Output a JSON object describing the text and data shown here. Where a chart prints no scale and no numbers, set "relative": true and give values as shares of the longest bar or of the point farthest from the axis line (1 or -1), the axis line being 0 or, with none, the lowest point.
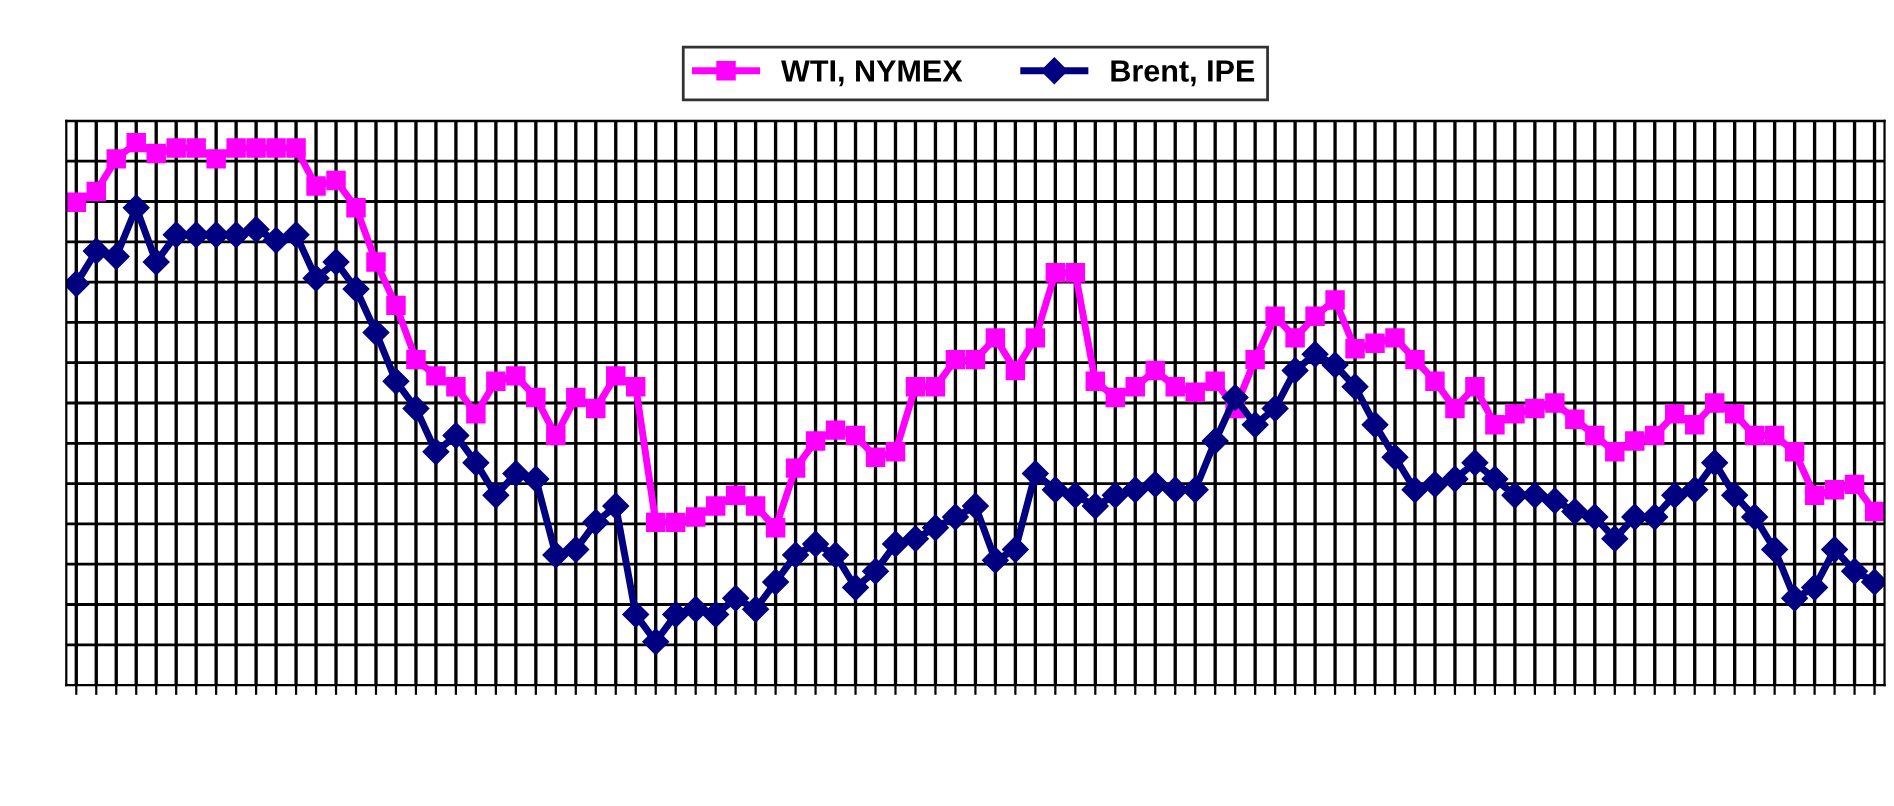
{
  "chart_data": {
    "type": "line",
    "relative": true,
    "grid": true,
    "legend": "top",
    "categories": [
      null,
      null,
      null,
      null,
      null,
      null,
      null,
      null,
      null,
      null,
      null,
      null,
      null,
      null,
      null,
      null,
      null,
      null,
      null,
      null,
      null,
      null,
      null,
      null,
      null,
      null,
      null,
      null,
      null,
      null,
      null,
      null,
      null,
      null,
      null,
      null,
      null,
      null,
      null,
      null,
      null,
      null,
      null,
      null,
      null,
      null,
      null,
      null,
      null,
      null,
      null,
      null,
      null,
      null,
      null,
      null,
      null,
      null,
      null,
      null,
      null,
      null,
      null,
      null,
      null,
      null,
      null,
      null,
      null,
      null,
      null,
      null,
      null,
      null,
      null,
      null,
      null,
      null,
      null,
      null,
      null,
      null,
      null,
      null,
      null,
      null,
      null,
      null,
      null,
      null,
      null
    ],
    "series": [
      {
        "name": "WTI, NYMEX",
        "color": "#ff00ff",
        "marker": "square",
        "values": [
          0.89,
          0.91,
          0.97,
          1.0,
          0.98,
          0.99,
          0.99,
          0.97,
          0.99,
          0.99,
          0.99,
          0.99,
          0.92,
          0.93,
          0.88,
          0.78,
          0.7,
          0.6,
          0.57,
          0.55,
          0.5,
          0.56,
          0.57,
          0.53,
          0.46,
          0.53,
          0.51,
          0.57,
          0.55,
          0.3,
          0.3,
          0.31,
          0.33,
          0.35,
          0.33,
          0.29,
          0.4,
          0.45,
          0.47,
          0.46,
          0.42,
          0.43,
          0.55,
          0.55,
          0.6,
          0.6,
          0.64,
          0.58,
          0.64,
          0.76,
          0.76,
          0.56,
          0.53,
          0.55,
          0.58,
          0.55,
          0.54,
          0.56,
          0.51,
          0.6,
          0.68,
          0.64,
          0.68,
          0.71,
          0.62,
          0.63,
          0.64,
          0.6,
          0.56,
          0.51,
          0.55,
          0.48,
          0.5,
          0.51,
          0.52,
          0.49,
          0.46,
          0.43,
          0.45,
          0.46,
          0.5,
          0.48,
          0.52,
          0.5,
          0.46,
          0.46,
          0.43,
          0.35,
          0.36,
          0.37,
          0.32
        ]
      },
      {
        "name": "Brent, IPE",
        "color": "#000080",
        "marker": "diamond",
        "values": [
          0.74,
          0.8,
          0.79,
          0.88,
          0.78,
          0.83,
          0.83,
          0.83,
          0.83,
          0.84,
          0.82,
          0.83,
          0.75,
          0.78,
          0.73,
          0.65,
          0.56,
          0.51,
          0.43,
          0.46,
          0.41,
          0.35,
          0.39,
          0.38,
          0.24,
          0.25,
          0.3,
          0.33,
          0.13,
          0.08,
          0.13,
          0.14,
          0.13,
          0.16,
          0.14,
          0.19,
          0.24,
          0.26,
          0.24,
          0.18,
          0.21,
          0.26,
          0.27,
          0.29,
          0.31,
          0.33,
          0.23,
          0.25,
          0.39,
          0.36,
          0.35,
          0.33,
          0.35,
          0.36,
          0.37,
          0.36,
          0.36,
          0.45,
          0.53,
          0.48,
          0.51,
          0.58,
          0.61,
          0.59,
          0.55,
          0.48,
          0.42,
          0.36,
          0.37,
          0.38,
          0.41,
          0.38,
          0.35,
          0.35,
          0.34,
          0.32,
          0.31,
          0.27,
          0.31,
          0.31,
          0.35,
          0.36,
          0.41,
          0.35,
          0.31,
          0.25,
          0.16,
          0.18,
          0.25,
          0.21,
          0.19
        ]
      }
    ]
  }
}
